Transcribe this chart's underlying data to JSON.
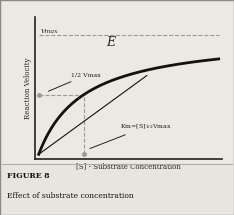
{
  "title": "E",
  "xlabel": "[S] - Substrate Concentration",
  "ylabel": "Reaction Velocity",
  "figure_label": "FIGURE 8",
  "figure_caption": "Effect of substrate concentration",
  "vmax": 1.0,
  "km": 0.25,
  "half_vmax_label": "1/2 Vmax",
  "vmax_label": "Vmax",
  "km_label": "Km=[S]$_{1/2}$Vmax",
  "bg_color": "#ece9e3",
  "curve_color": "#111111",
  "dashed_color": "#999999",
  "annotation_color": "#222222",
  "border_color": "#aaaaaa",
  "caption_bg": "#e8e4de"
}
